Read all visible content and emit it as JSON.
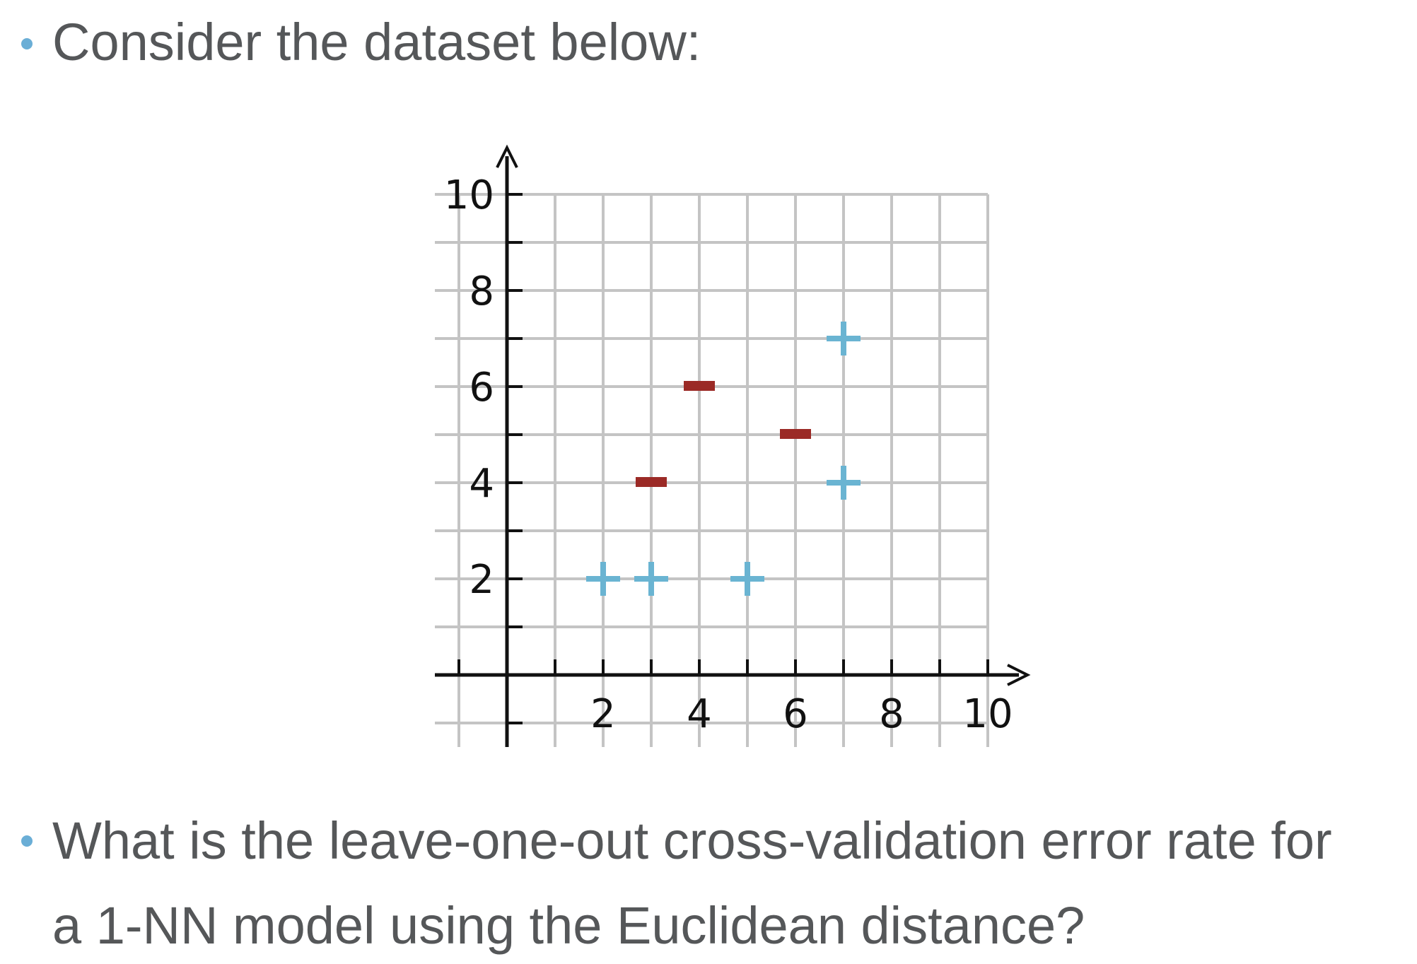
{
  "bullets": [
    "Consider the dataset below:",
    "What is the leave-one-out cross-validation error rate for a 1-NN model using the Euclidean distance?"
  ],
  "colors": {
    "text": "#555759",
    "bullet": "#6aaed6",
    "positive": "#6ab4d2",
    "negative": "#9b2a26",
    "grid": "#c4c4c4",
    "axis": "#111111"
  },
  "chart_data": {
    "type": "scatter",
    "title": "",
    "xlabel": "",
    "ylabel": "",
    "xlim": [
      -1.5,
      10.5
    ],
    "ylim": [
      -1.5,
      10.5
    ],
    "x_ticks": [
      "2",
      "4",
      "6",
      "8",
      "10"
    ],
    "y_ticks": [
      "2",
      "4",
      "6",
      "8",
      "10"
    ],
    "grid": true,
    "series": [
      {
        "marker": "plus",
        "color": "#6ab4d2",
        "points": [
          [
            2,
            2
          ],
          [
            3,
            2
          ],
          [
            5,
            2
          ],
          [
            7,
            4
          ],
          [
            7,
            7
          ]
        ]
      },
      {
        "marker": "minus",
        "color": "#9b2a26",
        "points": [
          [
            3,
            4
          ],
          [
            4,
            6
          ],
          [
            6,
            5
          ]
        ]
      }
    ]
  }
}
